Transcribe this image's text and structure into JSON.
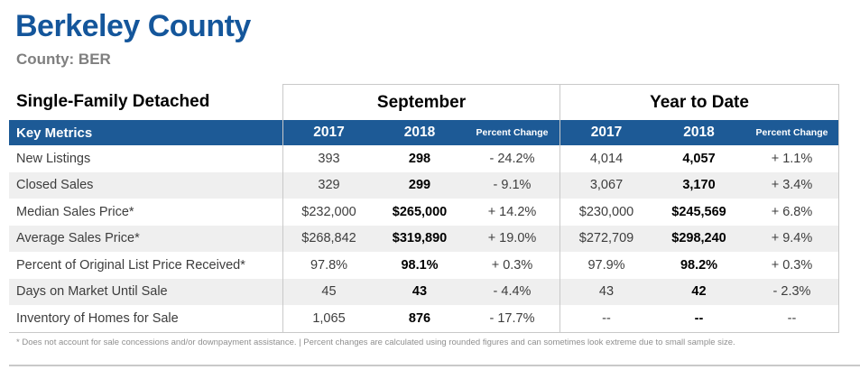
{
  "header": {
    "title": "Berkeley County",
    "subtitle": "County: BER"
  },
  "table": {
    "section_title": "Single-Family Detached",
    "group_headers": {
      "september": "September",
      "ytd": "Year to Date"
    },
    "key_metrics_label": "Key Metrics",
    "columns": {
      "sep_2017": "2017",
      "sep_2018": "2018",
      "sep_pct": "Percent Change",
      "ytd_2017": "2017",
      "ytd_2018": "2018",
      "ytd_pct": "Percent Change"
    },
    "rows": [
      {
        "metric": "New Listings",
        "values": [
          "393",
          "298",
          "- 24.2%",
          "4,014",
          "4,057",
          "+ 1.1%"
        ]
      },
      {
        "metric": "Closed Sales",
        "values": [
          "329",
          "299",
          "- 9.1%",
          "3,067",
          "3,170",
          "+ 3.4%"
        ]
      },
      {
        "metric": "Median Sales Price*",
        "values": [
          "$232,000",
          "$265,000",
          "+ 14.2%",
          "$230,000",
          "$245,569",
          "+ 6.8%"
        ]
      },
      {
        "metric": "Average Sales Price*",
        "values": [
          "$268,842",
          "$319,890",
          "+ 19.0%",
          "$272,709",
          "$298,240",
          "+ 9.4%"
        ]
      },
      {
        "metric": "Percent of Original List Price Received*",
        "values": [
          "97.8%",
          "98.1%",
          "+ 0.3%",
          "97.9%",
          "98.2%",
          "+ 0.3%"
        ]
      },
      {
        "metric": "Days on Market Until Sale",
        "values": [
          "45",
          "43",
          "- 4.4%",
          "43",
          "42",
          "- 2.3%"
        ]
      },
      {
        "metric": "Inventory of Homes for Sale",
        "values": [
          "1,065",
          "876",
          "- 17.7%",
          "--",
          "--",
          "--"
        ]
      }
    ],
    "footnote": "* Does not account for sale concessions and/or downpayment assistance.  |  Percent changes are calculated using rounded figures and can sometimes look extreme due to small sample size."
  },
  "colors": {
    "title_blue": "#14569b",
    "bar_blue": "#1d5a96",
    "alt_row": "#efefef",
    "border_gray": "#c9c9c9",
    "subtitle_gray": "#7f7f7f",
    "footnote_gray": "#8f8f8f"
  }
}
